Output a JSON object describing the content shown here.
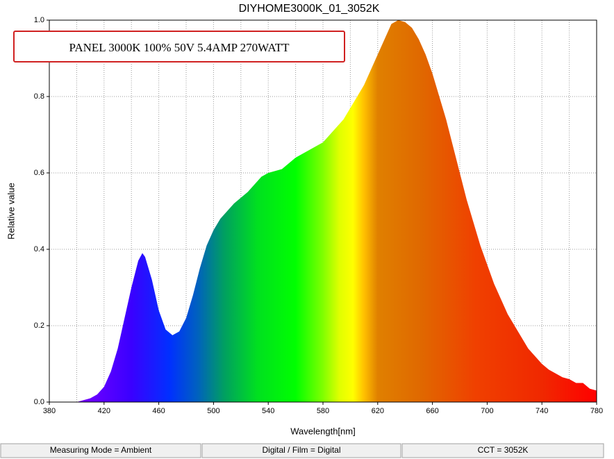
{
  "chart_data": {
    "type": "area",
    "title": "DIYHOME3000K_01_3052K",
    "annotation": "PANEL 3000K 100% 50V 5.4AMP  270WATT",
    "x_label": "Wavelength[nm]",
    "y_label": "Relative value",
    "x": [
      400,
      405,
      410,
      415,
      420,
      425,
      430,
      435,
      440,
      445,
      448,
      450,
      455,
      460,
      465,
      470,
      475,
      480,
      485,
      490,
      495,
      500,
      505,
      510,
      515,
      520,
      525,
      530,
      535,
      540,
      545,
      550,
      555,
      560,
      565,
      570,
      575,
      580,
      585,
      590,
      595,
      600,
      605,
      610,
      615,
      620,
      625,
      630,
      635,
      640,
      645,
      650,
      655,
      660,
      665,
      670,
      675,
      680,
      685,
      690,
      695,
      700,
      705,
      710,
      715,
      720,
      725,
      730,
      735,
      740,
      745,
      750,
      755,
      760,
      765,
      770,
      775,
      780
    ],
    "values": [
      0,
      0.005,
      0.01,
      0.02,
      0.04,
      0.08,
      0.14,
      0.22,
      0.3,
      0.37,
      0.39,
      0.38,
      0.32,
      0.24,
      0.19,
      0.175,
      0.185,
      0.22,
      0.28,
      0.35,
      0.41,
      0.45,
      0.48,
      0.5,
      0.52,
      0.535,
      0.55,
      0.57,
      0.59,
      0.6,
      0.605,
      0.61,
      0.625,
      0.64,
      0.65,
      0.66,
      0.67,
      0.68,
      0.7,
      0.72,
      0.74,
      0.77,
      0.8,
      0.83,
      0.87,
      0.91,
      0.95,
      0.99,
      1.0,
      0.995,
      0.98,
      0.95,
      0.91,
      0.86,
      0.8,
      0.74,
      0.67,
      0.6,
      0.53,
      0.47,
      0.41,
      0.36,
      0.31,
      0.27,
      0.23,
      0.2,
      0.17,
      0.14,
      0.12,
      0.1,
      0.085,
      0.075,
      0.065,
      0.06,
      0.05,
      0.05,
      0.035,
      0.03
    ],
    "xlim": [
      380,
      780
    ],
    "xticks": [
      380,
      420,
      460,
      500,
      540,
      580,
      620,
      660,
      700,
      740,
      780
    ],
    "xgrid": [
      380,
      400,
      420,
      440,
      460,
      480,
      500,
      520,
      540,
      560,
      580,
      600,
      620,
      640,
      660,
      680,
      700,
      720,
      740,
      760,
      780
    ],
    "ylim": [
      0,
      1
    ],
    "yticks": [
      {
        "value": 0,
        "label": "0.0"
      },
      {
        "value": 0.2,
        "label": "0.2"
      },
      {
        "value": 0.4,
        "label": "0.4"
      },
      {
        "value": 0.6,
        "label": "0.6"
      },
      {
        "value": 0.8,
        "label": "0.8"
      },
      {
        "value": 1,
        "label": "1.0"
      }
    ],
    "grid": true,
    "status": [
      "Measuring Mode = Ambient",
      "Digital / Film = Digital",
      "CCT = 3052K"
    ]
  }
}
